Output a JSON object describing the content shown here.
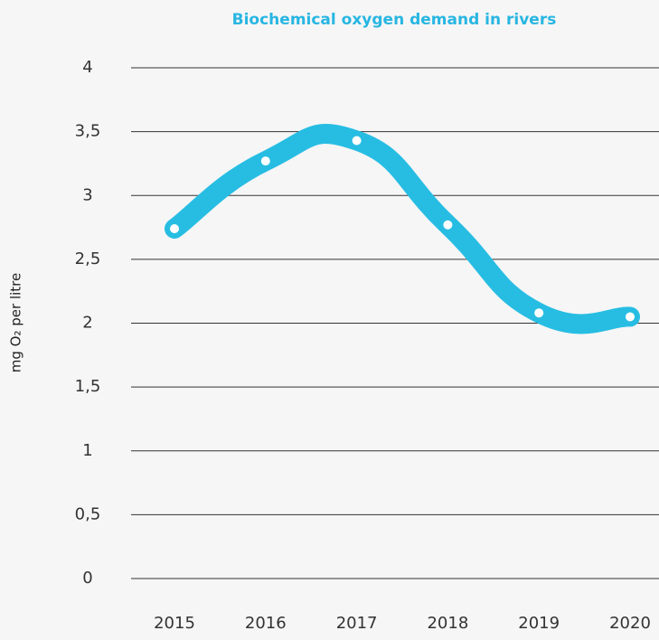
{
  "chart_data": {
    "type": "line",
    "title": "Biochemical oxygen demand in rivers",
    "y_label": "mg O₂ per litre",
    "categories": [
      "2015",
      "2016",
      "2017",
      "2018",
      "2019",
      "2020"
    ],
    "series": [
      {
        "color": "#27bde3",
        "values": [
          2.74,
          3.27,
          3.43,
          2.77,
          2.08,
          2.05
        ]
      }
    ],
    "ylim": [
      0,
      4
    ],
    "yticks": [
      0,
      {
        "value": 0.5,
        "label": "0,5"
      },
      1,
      {
        "value": 1.5,
        "label": "1,5"
      },
      2,
      {
        "value": 2.5,
        "label": "2,5"
      },
      3,
      {
        "value": 3.5,
        "label": "3,5"
      },
      4
    ],
    "grid": true
  }
}
